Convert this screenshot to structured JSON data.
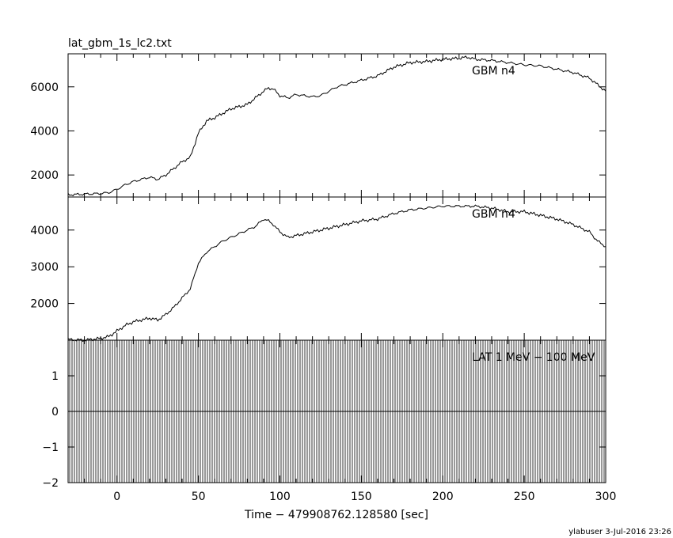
{
  "title": "lat_gbm_1s_lc2.txt",
  "xlabel": "Time − 479908762.128580 [sec]",
  "footer": "ylabuser   3-Jul-2016 23:26",
  "chart_data": [
    {
      "type": "line",
      "series": [
        {
          "name": "GBM n4",
          "x": [
            -30,
            -20,
            -10,
            -5,
            0,
            5,
            10,
            15,
            20,
            25,
            30,
            35,
            40,
            45,
            50,
            55,
            60,
            65,
            70,
            75,
            80,
            85,
            90,
            93,
            96,
            100,
            105,
            110,
            115,
            120,
            125,
            130,
            135,
            140,
            150,
            160,
            170,
            180,
            190,
            200,
            210,
            215,
            220,
            230,
            240,
            250,
            260,
            270,
            280,
            290,
            295,
            300
          ],
          "y": [
            1100,
            1130,
            1160,
            1200,
            1350,
            1550,
            1700,
            1800,
            1900,
            1800,
            2000,
            2300,
            2600,
            2800,
            3900,
            4450,
            4600,
            4800,
            5000,
            5100,
            5200,
            5500,
            5800,
            5950,
            5900,
            5600,
            5500,
            5650,
            5600,
            5550,
            5600,
            5800,
            6000,
            6100,
            6300,
            6500,
            6900,
            7100,
            7150,
            7250,
            7300,
            7350,
            7250,
            7200,
            7100,
            7000,
            6950,
            6800,
            6650,
            6400,
            6100,
            5800
          ],
          "color": "#000000"
        }
      ],
      "ylim": [
        1000,
        7500
      ],
      "yticks": [
        2000,
        4000,
        6000
      ],
      "xlim": [
        -30,
        300
      ],
      "annotations": [
        "GBM n4"
      ]
    },
    {
      "type": "line",
      "series": [
        {
          "name": "GBM n4",
          "x": [
            -30,
            -20,
            -10,
            -5,
            0,
            5,
            10,
            15,
            20,
            25,
            30,
            35,
            40,
            45,
            50,
            55,
            60,
            65,
            70,
            75,
            80,
            85,
            90,
            93,
            96,
            100,
            105,
            110,
            115,
            120,
            130,
            140,
            150,
            160,
            170,
            180,
            190,
            200,
            210,
            220,
            230,
            240,
            250,
            260,
            270,
            280,
            290,
            295,
            300
          ],
          "y": [
            1020,
            1000,
            1050,
            1100,
            1250,
            1400,
            1500,
            1550,
            1600,
            1550,
            1700,
            1900,
            2150,
            2400,
            3100,
            3400,
            3550,
            3700,
            3800,
            3900,
            4000,
            4100,
            4300,
            4250,
            4150,
            3950,
            3800,
            3850,
            3900,
            3950,
            4050,
            4150,
            4250,
            4300,
            4450,
            4550,
            4600,
            4650,
            4650,
            4650,
            4600,
            4500,
            4500,
            4400,
            4300,
            4150,
            3950,
            3700,
            3550
          ],
          "color": "#000000"
        }
      ],
      "ylim": [
        1000,
        4900
      ],
      "yticks": [
        2000,
        3000,
        4000
      ],
      "xlim": [
        -30,
        300
      ],
      "annotations": [
        "GBM n4"
      ]
    },
    {
      "type": "line",
      "series": [
        {
          "name": "LAT 1 MeV − 100 MeV",
          "x": [
            -30,
            300
          ],
          "y": [
            0,
            0
          ],
          "color": "#000000"
        }
      ],
      "ylim": [
        -2,
        2
      ],
      "yticks": [
        -2,
        -1,
        0,
        1
      ],
      "xlim": [
        -30,
        300
      ],
      "xticks": [
        0,
        50,
        100,
        150,
        200,
        250,
        300
      ],
      "annotations": [
        "LAT 1 MeV − 100 MeV"
      ]
    }
  ]
}
